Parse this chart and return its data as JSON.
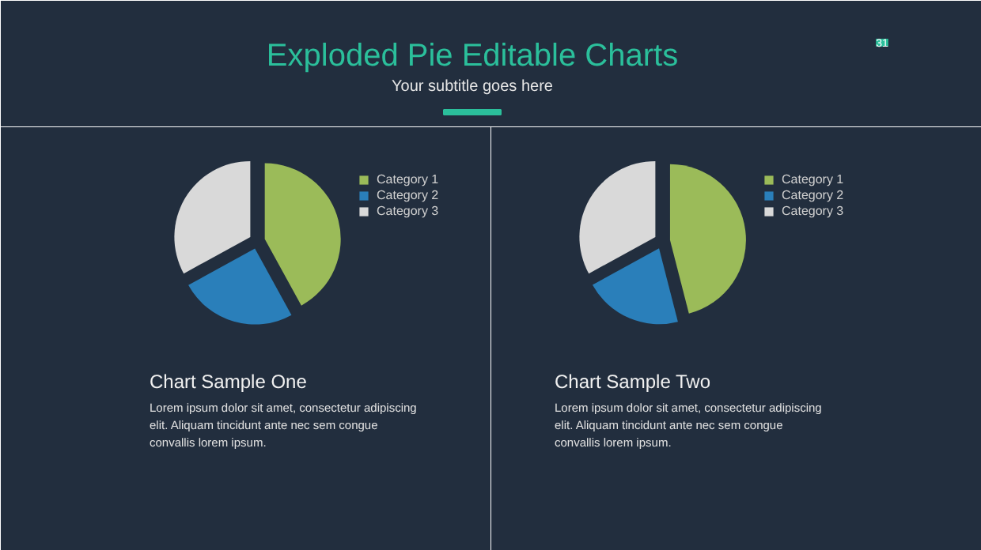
{
  "chart_data": [
    {
      "type": "other",
      "title": "Exploded Pie Editable Charts",
      "subtitle": "Your subtitle goes here",
      "annotations": [
        "31"
      ]
    },
    {
      "type": "pie",
      "title": "Chart Sample One",
      "categories": [
        "Category 1",
        "Category 2",
        "Category 3"
      ],
      "values": [
        42,
        25,
        33
      ],
      "colors": [
        "#9bbb59",
        "#2a7fba",
        "#d9d9d9"
      ],
      "legend": "right",
      "annotations": [
        "Lorem ipsum dolor sit amet, consectetur adipiscing elit. Aliquam tincidunt ante nec sem congue convallis lorem ipsum."
      ]
    },
    {
      "type": "pie",
      "title": "Chart Sample Two",
      "categories": [
        "Category 1",
        "Category 2",
        "Category 3"
      ],
      "values": [
        46,
        21,
        33
      ],
      "colors": [
        "#9bbb59",
        "#2a7fba",
        "#d9d9d9"
      ],
      "legend": "right",
      "annotations": [
        "Lorem ipsum dolor sit amet, consectetur adipiscing elit. Aliquam tincidunt ante nec sem congue convallis lorem ipsum."
      ]
    }
  ]
}
